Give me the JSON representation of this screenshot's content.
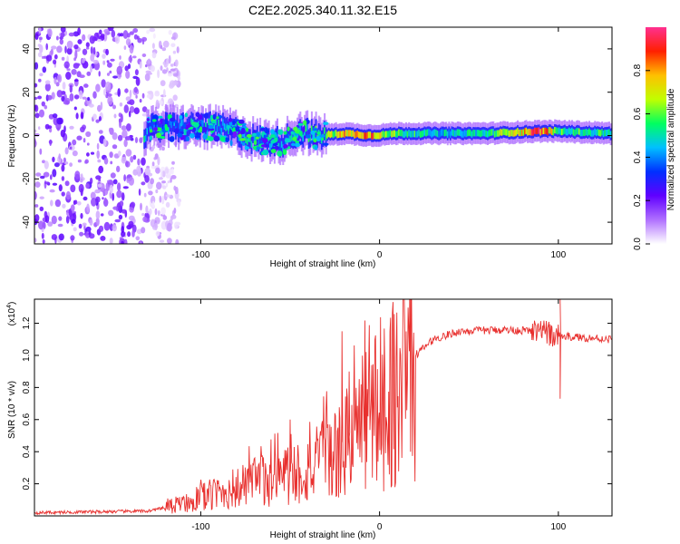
{
  "title": "C2E2.2025.340.11.32.E15",
  "chart_data": [
    {
      "type": "heatmap",
      "name": "spectrogram",
      "xlabel": "Height of straight line (km)",
      "ylabel": "Frequency (Hz)",
      "xlim": [
        -193,
        130
      ],
      "ylim": [
        -50,
        50
      ],
      "xticks": [
        -100,
        0,
        100
      ],
      "yticks": [
        -40,
        -20,
        0,
        20,
        40
      ],
      "noise_region_x": [
        -193,
        -120
      ],
      "ridge": [
        {
          "x": -130,
          "f": 3,
          "a": 0.35
        },
        {
          "x": -115,
          "f": 4,
          "a": 0.45
        },
        {
          "x": -100,
          "f": 4,
          "a": 0.5
        },
        {
          "x": -85,
          "f": 3,
          "a": 0.5
        },
        {
          "x": -70,
          "f": -2,
          "a": 0.5
        },
        {
          "x": -55,
          "f": -3,
          "a": 0.45
        },
        {
          "x": -45,
          "f": 2,
          "a": 0.5
        },
        {
          "x": -35,
          "f": 0,
          "a": 0.6
        },
        {
          "x": -20,
          "f": 1,
          "a": 0.8
        },
        {
          "x": -5,
          "f": 0,
          "a": 0.85
        },
        {
          "x": 10,
          "f": 1,
          "a": 0.6
        },
        {
          "x": 30,
          "f": 1,
          "a": 0.5
        },
        {
          "x": 60,
          "f": 1,
          "a": 0.55
        },
        {
          "x": 90,
          "f": 2,
          "a": 0.95
        },
        {
          "x": 100,
          "f": 2,
          "a": 0.6
        },
        {
          "x": 130,
          "f": 1,
          "a": 0.55
        }
      ],
      "colorbar": {
        "label": "Normalized spectral amplitude",
        "range": [
          0.0,
          1.0
        ],
        "ticks": [
          "0.0",
          "0.2",
          "0.4",
          "0.6",
          "0.8"
        ],
        "tick_values": [
          0.0,
          0.2,
          0.4,
          0.6,
          0.8
        ],
        "colors": [
          "#ffffff",
          "#b070ff",
          "#6000ff",
          "#0030ff",
          "#00c0ff",
          "#00ff60",
          "#c0ff00",
          "#ffc000",
          "#ff2000",
          "#ff3090"
        ]
      }
    },
    {
      "type": "line",
      "name": "snr",
      "xlabel": "Height of straight line (km)",
      "ylabel": "SNR (10 * v/v)",
      "y_multiplier": "(x10",
      "y_multiplier_exp": "4",
      "y_multiplier_close": ")",
      "xlim": [
        -193,
        130
      ],
      "ylim": [
        0,
        1.35
      ],
      "xticks": [
        -100,
        0,
        100
      ],
      "yticks": [
        "0.2",
        "0.4",
        "0.6",
        "0.8",
        "1.0",
        "1.2"
      ],
      "ytick_values": [
        0.2,
        0.4,
        0.6,
        0.8,
        1.0,
        1.2
      ],
      "color": "#e8302e",
      "envelope": [
        {
          "x": -193,
          "y": 0.02
        },
        {
          "x": -130,
          "y": 0.03
        },
        {
          "x": -120,
          "y": 0.05
        },
        {
          "x": -100,
          "y": 0.12
        },
        {
          "x": -80,
          "y": 0.18
        },
        {
          "x": -60,
          "y": 0.25
        },
        {
          "x": -40,
          "y": 0.3
        },
        {
          "x": -25,
          "y": 0.4
        },
        {
          "x": -15,
          "y": 0.55
        },
        {
          "x": 0,
          "y": 0.72
        },
        {
          "x": 10,
          "y": 0.85
        },
        {
          "x": 20,
          "y": 1.0
        },
        {
          "x": 30,
          "y": 1.1
        },
        {
          "x": 45,
          "y": 1.15
        },
        {
          "x": 70,
          "y": 1.16
        },
        {
          "x": 90,
          "y": 1.15
        },
        {
          "x": 100,
          "y": 1.12
        },
        {
          "x": 130,
          "y": 1.1
        }
      ],
      "spikes": [
        {
          "x": -21,
          "y": 1.15
        },
        {
          "x": -17,
          "y": 0.9
        },
        {
          "x": -50,
          "y": 0.6
        },
        {
          "x": 101,
          "y": 1.35
        },
        {
          "x": 101,
          "y": 0.73
        }
      ]
    }
  ]
}
